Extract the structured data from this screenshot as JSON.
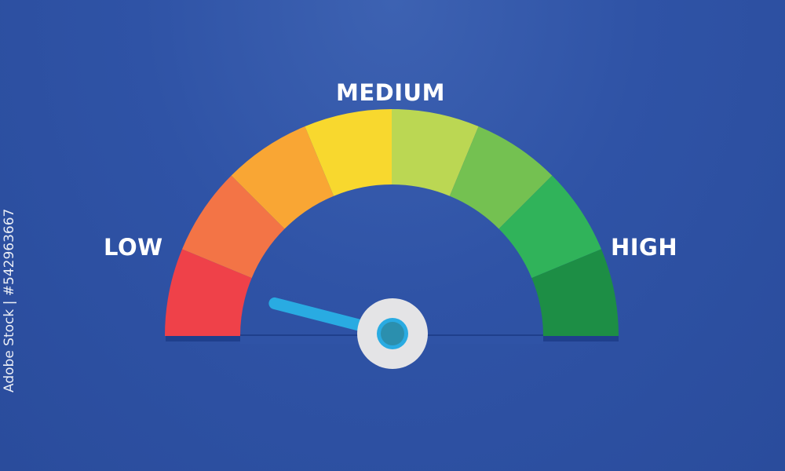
{
  "labels": {
    "low": "LOW",
    "medium": "MEDIUM",
    "high": "HIGH"
  },
  "gauge": {
    "segment_colors": [
      "#ef4149",
      "#f37446",
      "#f9a634",
      "#f8d82e",
      "#bbd753",
      "#74c151",
      "#30b35a",
      "#1d8e45"
    ],
    "needle_value_fraction": 0.08,
    "needle_color": "#29abe2",
    "hub_color": "#e4e4e6",
    "hub_center_color": "#2b8fae"
  },
  "background_color": "#2f53a6",
  "watermark": {
    "brand": "Adobe Stock",
    "id": "Adobe Stock | #542963667"
  }
}
